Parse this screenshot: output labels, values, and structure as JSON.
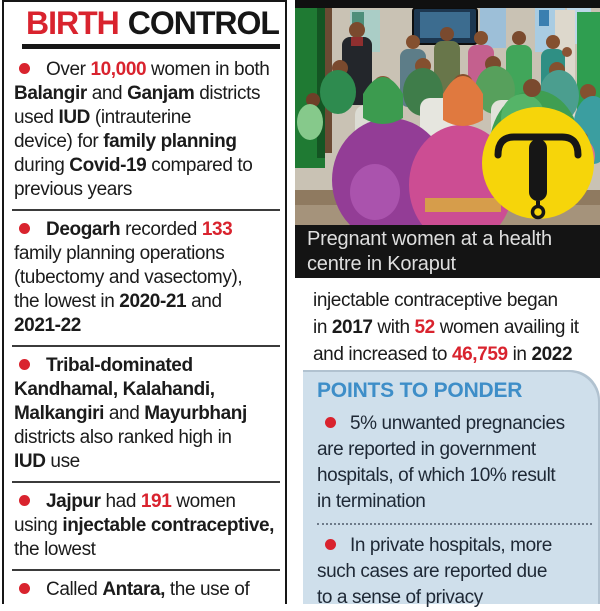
{
  "colors": {
    "red": "#d9232e",
    "blue": "#3e8ec8",
    "blue_bg": "#cfdfeb",
    "yellow": "#f6d50a",
    "ink": "#1b1b1b",
    "caption_bg": "#141414",
    "caption_text": "#dfdfdf"
  },
  "title": {
    "red_word": "BIRTH",
    "black_word": "CONTROL"
  },
  "bullets": [
    {
      "segments": [
        {
          "t": "Over ",
          "s": "n"
        },
        {
          "t": "10,000",
          "s": "r"
        },
        {
          "t": " women in both",
          "s": "n"
        },
        {
          "br": true
        },
        {
          "t": "Balangir",
          "s": "b"
        },
        {
          "t": " and ",
          "s": "n"
        },
        {
          "t": "Ganjam",
          "s": "b"
        },
        {
          "t": " districts",
          "s": "n"
        },
        {
          "br": true
        },
        {
          "t": "used ",
          "s": "n"
        },
        {
          "t": "IUD",
          "s": "b"
        },
        {
          "t": " (intrauterine",
          "s": "n"
        },
        {
          "br": true
        },
        {
          "t": "device) for ",
          "s": "n"
        },
        {
          "t": "family planning",
          "s": "b"
        },
        {
          "br": true
        },
        {
          "t": "during ",
          "s": "n"
        },
        {
          "t": "Covid-19",
          "s": "b"
        },
        {
          "t": " compared to",
          "s": "n"
        },
        {
          "br": true
        },
        {
          "t": "previous years",
          "s": "n"
        }
      ]
    },
    {
      "segments": [
        {
          "t": "Deogarh",
          "s": "b"
        },
        {
          "t": " recorded ",
          "s": "n"
        },
        {
          "t": "133",
          "s": "r"
        },
        {
          "br": true
        },
        {
          "t": "family planning operations",
          "s": "n"
        },
        {
          "br": true
        },
        {
          "t": "(tubectomy and vasectomy),",
          "s": "n"
        },
        {
          "br": true
        },
        {
          "t": "the lowest in ",
          "s": "n"
        },
        {
          "t": "2020-21",
          "s": "b"
        },
        {
          "t": " and",
          "s": "n"
        },
        {
          "br": true
        },
        {
          "t": "2021-22",
          "s": "b"
        }
      ]
    },
    {
      "segments": [
        {
          "t": "Tribal-dominated",
          "s": "b"
        },
        {
          "br": true
        },
        {
          "t": "Kandhamal, Kalahandi,",
          "s": "b"
        },
        {
          "br": true
        },
        {
          "t": "Malkangiri",
          "s": "b"
        },
        {
          "t": " and ",
          "s": "n"
        },
        {
          "t": "Mayurbhanj",
          "s": "b"
        },
        {
          "br": true
        },
        {
          "t": "districts also ranked high in",
          "s": "n"
        },
        {
          "br": true
        },
        {
          "t": "IUD",
          "s": "b"
        },
        {
          "t": " use",
          "s": "n"
        }
      ]
    },
    {
      "segments": [
        {
          "t": "Jajpur",
          "s": "b"
        },
        {
          "t": " had ",
          "s": "n"
        },
        {
          "t": "191",
          "s": "r"
        },
        {
          "t": " women",
          "s": "n"
        },
        {
          "br": true
        },
        {
          "t": "using ",
          "s": "n"
        },
        {
          "t": "injectable contraceptive,",
          "s": "b"
        },
        {
          "br": true
        },
        {
          "t": "the lowest",
          "s": "n"
        }
      ]
    },
    {
      "segments": [
        {
          "t": "Called ",
          "s": "n"
        },
        {
          "t": "Antara,",
          "s": "b"
        },
        {
          "t": " the use of",
          "s": "n"
        }
      ]
    }
  ],
  "photo": {
    "caption": "Pregnant women at a health\ncentre in Koraput",
    "badge": "iud-symbol"
  },
  "continuation": {
    "segments": [
      {
        "t": "injectable contraceptive began",
        "s": "n"
      },
      {
        "br": true
      },
      {
        "t": "in ",
        "s": "n"
      },
      {
        "t": "2017",
        "s": "b"
      },
      {
        "t": " with ",
        "s": "n"
      },
      {
        "t": "52",
        "s": "r"
      },
      {
        "t": " women availing it",
        "s": "n"
      },
      {
        "br": true
      },
      {
        "t": "and increased to ",
        "s": "n"
      },
      {
        "t": "46,759",
        "s": "r"
      },
      {
        "t": " in ",
        "s": "n"
      },
      {
        "t": "2022",
        "s": "b"
      }
    ]
  },
  "ponder": {
    "heading": "POINTS TO PONDER",
    "bullets": [
      {
        "segments": [
          {
            "t": "5% unwanted pregnancies",
            "s": "n"
          },
          {
            "br": true
          },
          {
            "t": "are reported in government",
            "s": "n"
          },
          {
            "br": true
          },
          {
            "t": "hospitals, of which 10% result",
            "s": "n"
          },
          {
            "br": true
          },
          {
            "t": "in termination",
            "s": "n"
          }
        ]
      },
      {
        "segments": [
          {
            "t": "In private hospitals, more",
            "s": "n"
          },
          {
            "br": true
          },
          {
            "t": "such cases are reported due",
            "s": "n"
          },
          {
            "br": true
          },
          {
            "t": "to a sense of privacy",
            "s": "n"
          }
        ]
      }
    ]
  }
}
